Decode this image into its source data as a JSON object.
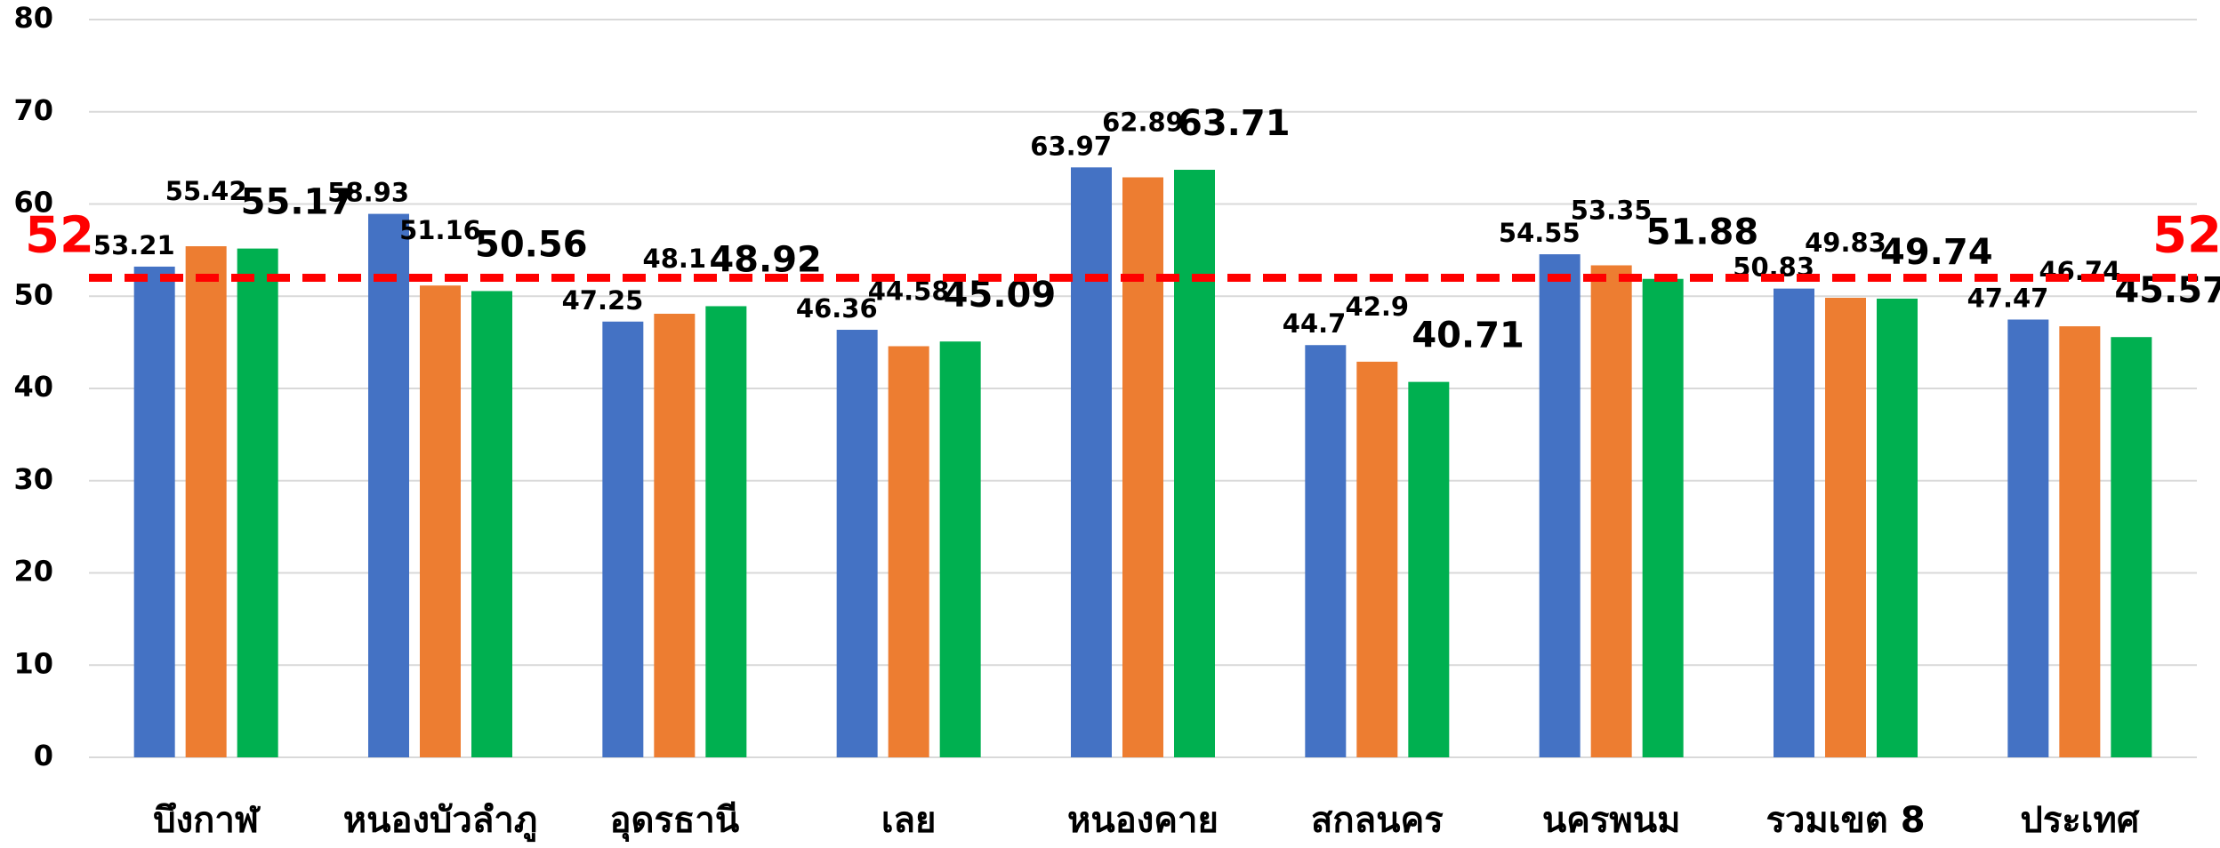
{
  "chart_data": {
    "type": "bar",
    "categories": [
      "บึงกาฬ",
      "หนองบัวลำภู",
      "อุดรธานี",
      "เลย",
      "หนองคาย",
      "สกลนคร",
      "นครพนม",
      "รวมเขต 8",
      "ประเทศ"
    ],
    "series": [
      {
        "color": "#4472c4",
        "values": [
          53.21,
          58.93,
          47.25,
          46.36,
          63.97,
          44.7,
          54.55,
          50.83,
          47.47
        ]
      },
      {
        "color": "#ed7d31",
        "values": [
          55.42,
          51.16,
          48.1,
          44.58,
          62.89,
          42.9,
          53.35,
          49.83,
          46.74
        ]
      },
      {
        "color": "#00b050",
        "values": [
          55.17,
          50.56,
          48.92,
          45.09,
          63.71,
          40.71,
          51.88,
          49.74,
          45.57
        ]
      }
    ],
    "ylim": [
      0,
      80
    ],
    "yticks": [
      0,
      10,
      20,
      30,
      40,
      50,
      60,
      70,
      80
    ],
    "grid": true,
    "reference_line": {
      "value": 52,
      "color": "#ff0000"
    }
  }
}
